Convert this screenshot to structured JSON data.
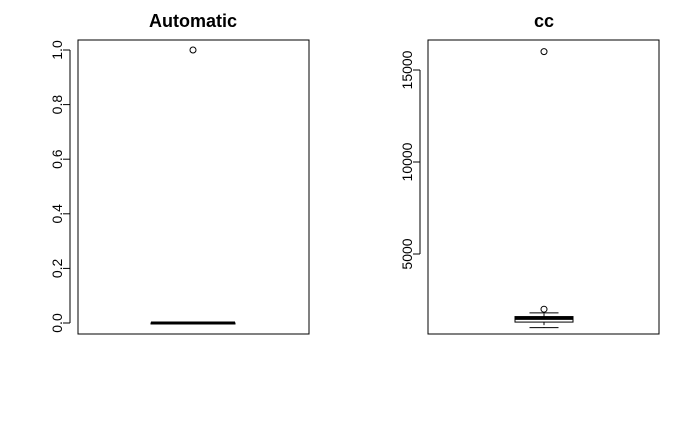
{
  "chart_data": [
    {
      "type": "boxplot",
      "title": "Automatic",
      "ylim": [
        0,
        1
      ],
      "yticks": [
        "0.0",
        "0.2",
        "0.4",
        "0.6",
        "0.8",
        "1.0"
      ],
      "box": {
        "min": 0,
        "q1": 0,
        "median": 0,
        "q3": 0,
        "max": 0
      },
      "outliers": [
        1.0
      ]
    },
    {
      "type": "boxplot",
      "title": "cc",
      "ylim": [
        1000,
        16000
      ],
      "yticks": [
        "5000",
        "10000",
        "15000"
      ],
      "box": {
        "min": 1000,
        "q1": 1300,
        "median": 1500,
        "q3": 1600,
        "max": 1800
      },
      "outliers": [
        2000,
        16000
      ]
    }
  ]
}
